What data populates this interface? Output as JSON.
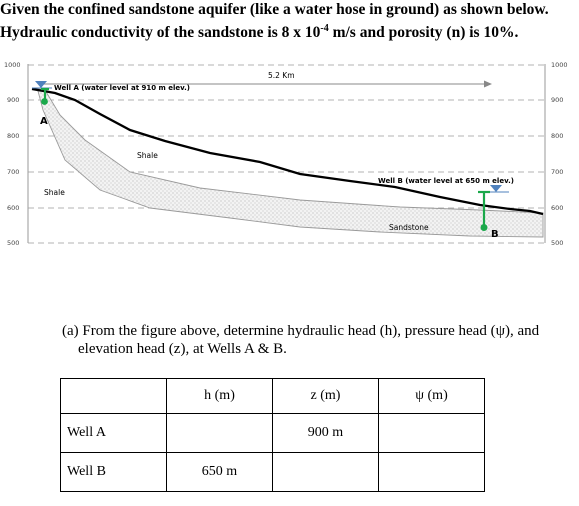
{
  "problem": {
    "line1": "Given the confined sandstone aquifer (like a water hose in ground) as shown below.",
    "line2": "Hydraulic conductivity of the sandstone is 8 x 10",
    "line2_exp": "-4",
    "line2_end": " m/s and porosity (n) is 10%."
  },
  "diagram": {
    "axis_ticks": [
      "1000",
      "900",
      "800",
      "700",
      "600",
      "500"
    ],
    "distance_label": "5.2 Km",
    "well_a_label": "Well A (water level at 910 m elev.)",
    "well_a_letter": "A",
    "well_b_label": "Well B (water level at 650 m elev.)",
    "well_b_letter": "B",
    "shale_upper": "Shale",
    "shale_lower": "Shale",
    "sandstone": "Sandstone",
    "colors": {
      "well": "#1aa84a",
      "water_symbol": "#4f81bd",
      "surface": "#000000",
      "grid": "#9a9a9a"
    }
  },
  "question": {
    "line1": "(a) From the figure above, determine hydraulic head (h), pressure head (ψ), and",
    "line2": "elevation head (z), at Wells A & B."
  },
  "table": {
    "headers": [
      "",
      "h (m)",
      "z (m)",
      "ψ (m)"
    ],
    "rows": [
      [
        "Well A",
        "",
        "900 m",
        ""
      ],
      [
        "Well B",
        "650 m",
        "",
        ""
      ]
    ]
  }
}
